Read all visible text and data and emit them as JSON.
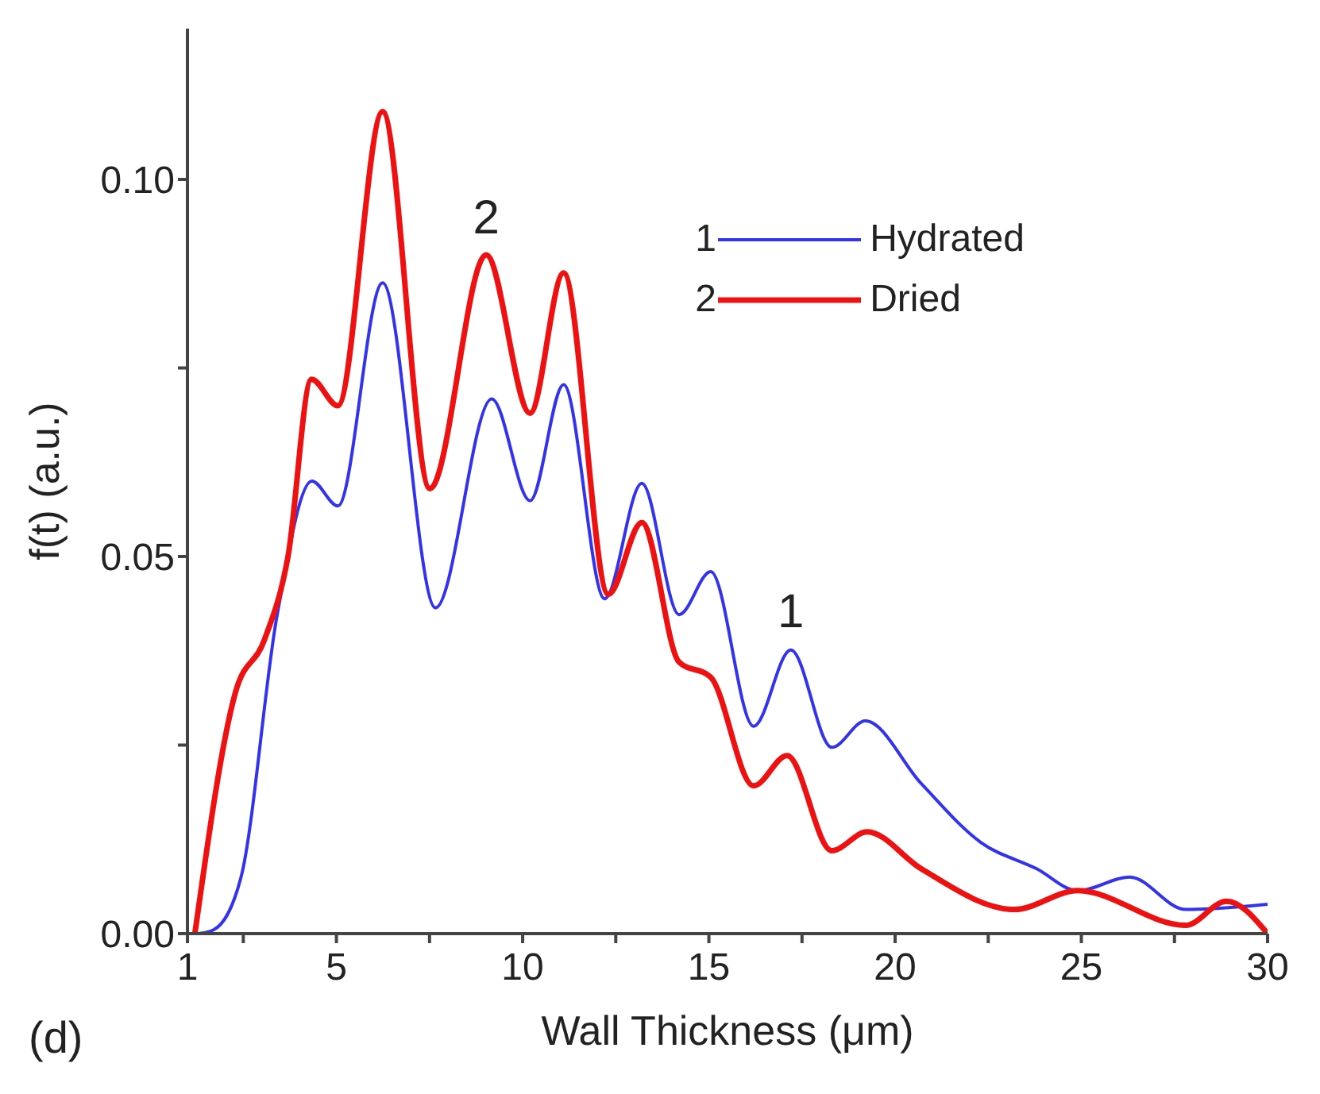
{
  "chart_data": {
    "type": "line",
    "xlabel": "Wall  Thickness  (μm)",
    "ylabel": "f(t)  (a.u.)",
    "xlim": [
      1,
      30
    ],
    "xticks": [
      1,
      {
        "value": 2.5,
        "label": null
      },
      5,
      {
        "value": 7.5,
        "label": null
      },
      10,
      {
        "value": 12.5,
        "label": null
      },
      15,
      {
        "value": 17.5,
        "label": null
      },
      20,
      {
        "value": 22.5,
        "label": null
      },
      25,
      {
        "value": 27.5,
        "label": null
      },
      30
    ],
    "ylim": [
      0,
      0.12
    ],
    "yticks": [
      {
        "value": 0,
        "label": "0.00"
      },
      {
        "value": 0.025,
        "label": null
      },
      {
        "value": 0.05,
        "label": "0.05"
      },
      {
        "value": 0.075,
        "label": null
      },
      {
        "value": 0.1,
        "label": "0.10"
      }
    ],
    "legend": "top right",
    "marker": "none",
    "line_style": "solid",
    "annotations": [
      "(d)",
      "1",
      "2",
      {
        "text": "2",
        "x": 9.02,
        "y": 0.09
      },
      {
        "text": "1",
        "x": 17.2,
        "y": 0.0376
      }
    ],
    "series": [
      {
        "name": "Hydrated",
        "color": "#3333ee",
        "x": [
          1.3,
          1.7,
          2.44,
          3.4,
          4.34,
          5.04,
          6.24,
          7.66,
          9.17,
          10.2,
          11.1,
          12.2,
          13.2,
          14.2,
          15.05,
          16.2,
          17.2,
          18.3,
          19.2,
          20.7,
          22.3,
          23.8,
          24.9,
          26.3,
          27.8,
          30
        ],
        "values": [
          0,
          0.0005,
          0.0075,
          0.042,
          0.06,
          0.0567,
          0.0863,
          0.0432,
          0.0709,
          0.0574,
          0.0728,
          0.0444,
          0.0597,
          0.0423,
          0.048,
          0.0275,
          0.0376,
          0.0247,
          0.0282,
          0.0199,
          0.0121,
          0.0086,
          0.0057,
          0.0075,
          0.0032,
          0.0039
        ]
      },
      {
        "name": "Dried",
        "color": "#ee1111",
        "x": [
          1.2,
          2.29,
          3.07,
          3.7,
          4.33,
          5.04,
          6.24,
          7.51,
          9.02,
          10.2,
          11.1,
          12.3,
          13.2,
          14.2,
          15.05,
          16.2,
          17.1,
          18.3,
          19.25,
          20.7,
          23.2,
          24.9,
          27.8,
          28.9,
          30
        ],
        "values": [
          0,
          0.032,
          0.039,
          0.05,
          0.0735,
          0.07,
          0.109,
          0.059,
          0.09,
          0.069,
          0.0876,
          0.045,
          0.0545,
          0.036,
          0.034,
          0.0196,
          0.0236,
          0.011,
          0.0135,
          0.0086,
          0.0032,
          0.0057,
          0.0011,
          0.0043,
          0
        ]
      }
    ]
  }
}
